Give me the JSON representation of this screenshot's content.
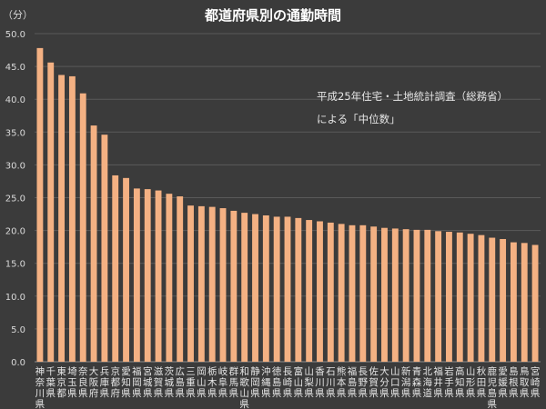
{
  "chart_data": {
    "type": "bar",
    "title": "都道府県別の通勤時間",
    "ylabel": "（分）",
    "ylim": [
      0,
      50
    ],
    "yticks": [
      "0.0",
      "5.0",
      "10.0",
      "15.0",
      "20.0",
      "25.0",
      "30.0",
      "35.0",
      "40.0",
      "45.0",
      "50.0"
    ],
    "grid": true,
    "annotation": [
      "平成25年住宅・土地統計調査（総務省）",
      "による「中位数」"
    ],
    "bar_color": "#f4b183",
    "categories": [
      "神奈川県",
      "千葉県",
      "東京都",
      "埼玉県",
      "奈良県",
      "大阪府",
      "兵庫県",
      "京都府",
      "愛知県",
      "福岡県",
      "宮城県",
      "滋賀県",
      "茨城県",
      "広島県",
      "三重県",
      "岡山県",
      "栃木県",
      "岐阜県",
      "群馬県",
      "和歌山県",
      "静岡県",
      "沖縄県",
      "徳島県",
      "長崎県",
      "富山県",
      "山梨県",
      "香川県",
      "石川県",
      "熊本県",
      "福島県",
      "長野県",
      "佐賀県",
      "大分県",
      "山口県",
      "新潟県",
      "青森県",
      "北海道",
      "福井県",
      "岩手県",
      "高知県",
      "山形県",
      "秋田県",
      "鹿児島県",
      "愛媛県",
      "島根県",
      "鳥取県",
      "宮崎県"
    ],
    "values": [
      47.8,
      45.6,
      43.7,
      43.5,
      40.9,
      36.0,
      34.6,
      28.4,
      28.0,
      26.4,
      26.3,
      26.1,
      25.6,
      25.2,
      23.8,
      23.7,
      23.6,
      23.4,
      23.0,
      22.7,
      22.5,
      22.3,
      22.1,
      22.1,
      21.9,
      21.6,
      21.4,
      21.2,
      21.0,
      20.8,
      20.8,
      20.6,
      20.4,
      20.3,
      20.2,
      20.1,
      20.1,
      19.9,
      19.8,
      19.7,
      19.5,
      19.3,
      18.9,
      18.7,
      18.2,
      18.1,
      17.8
    ]
  }
}
